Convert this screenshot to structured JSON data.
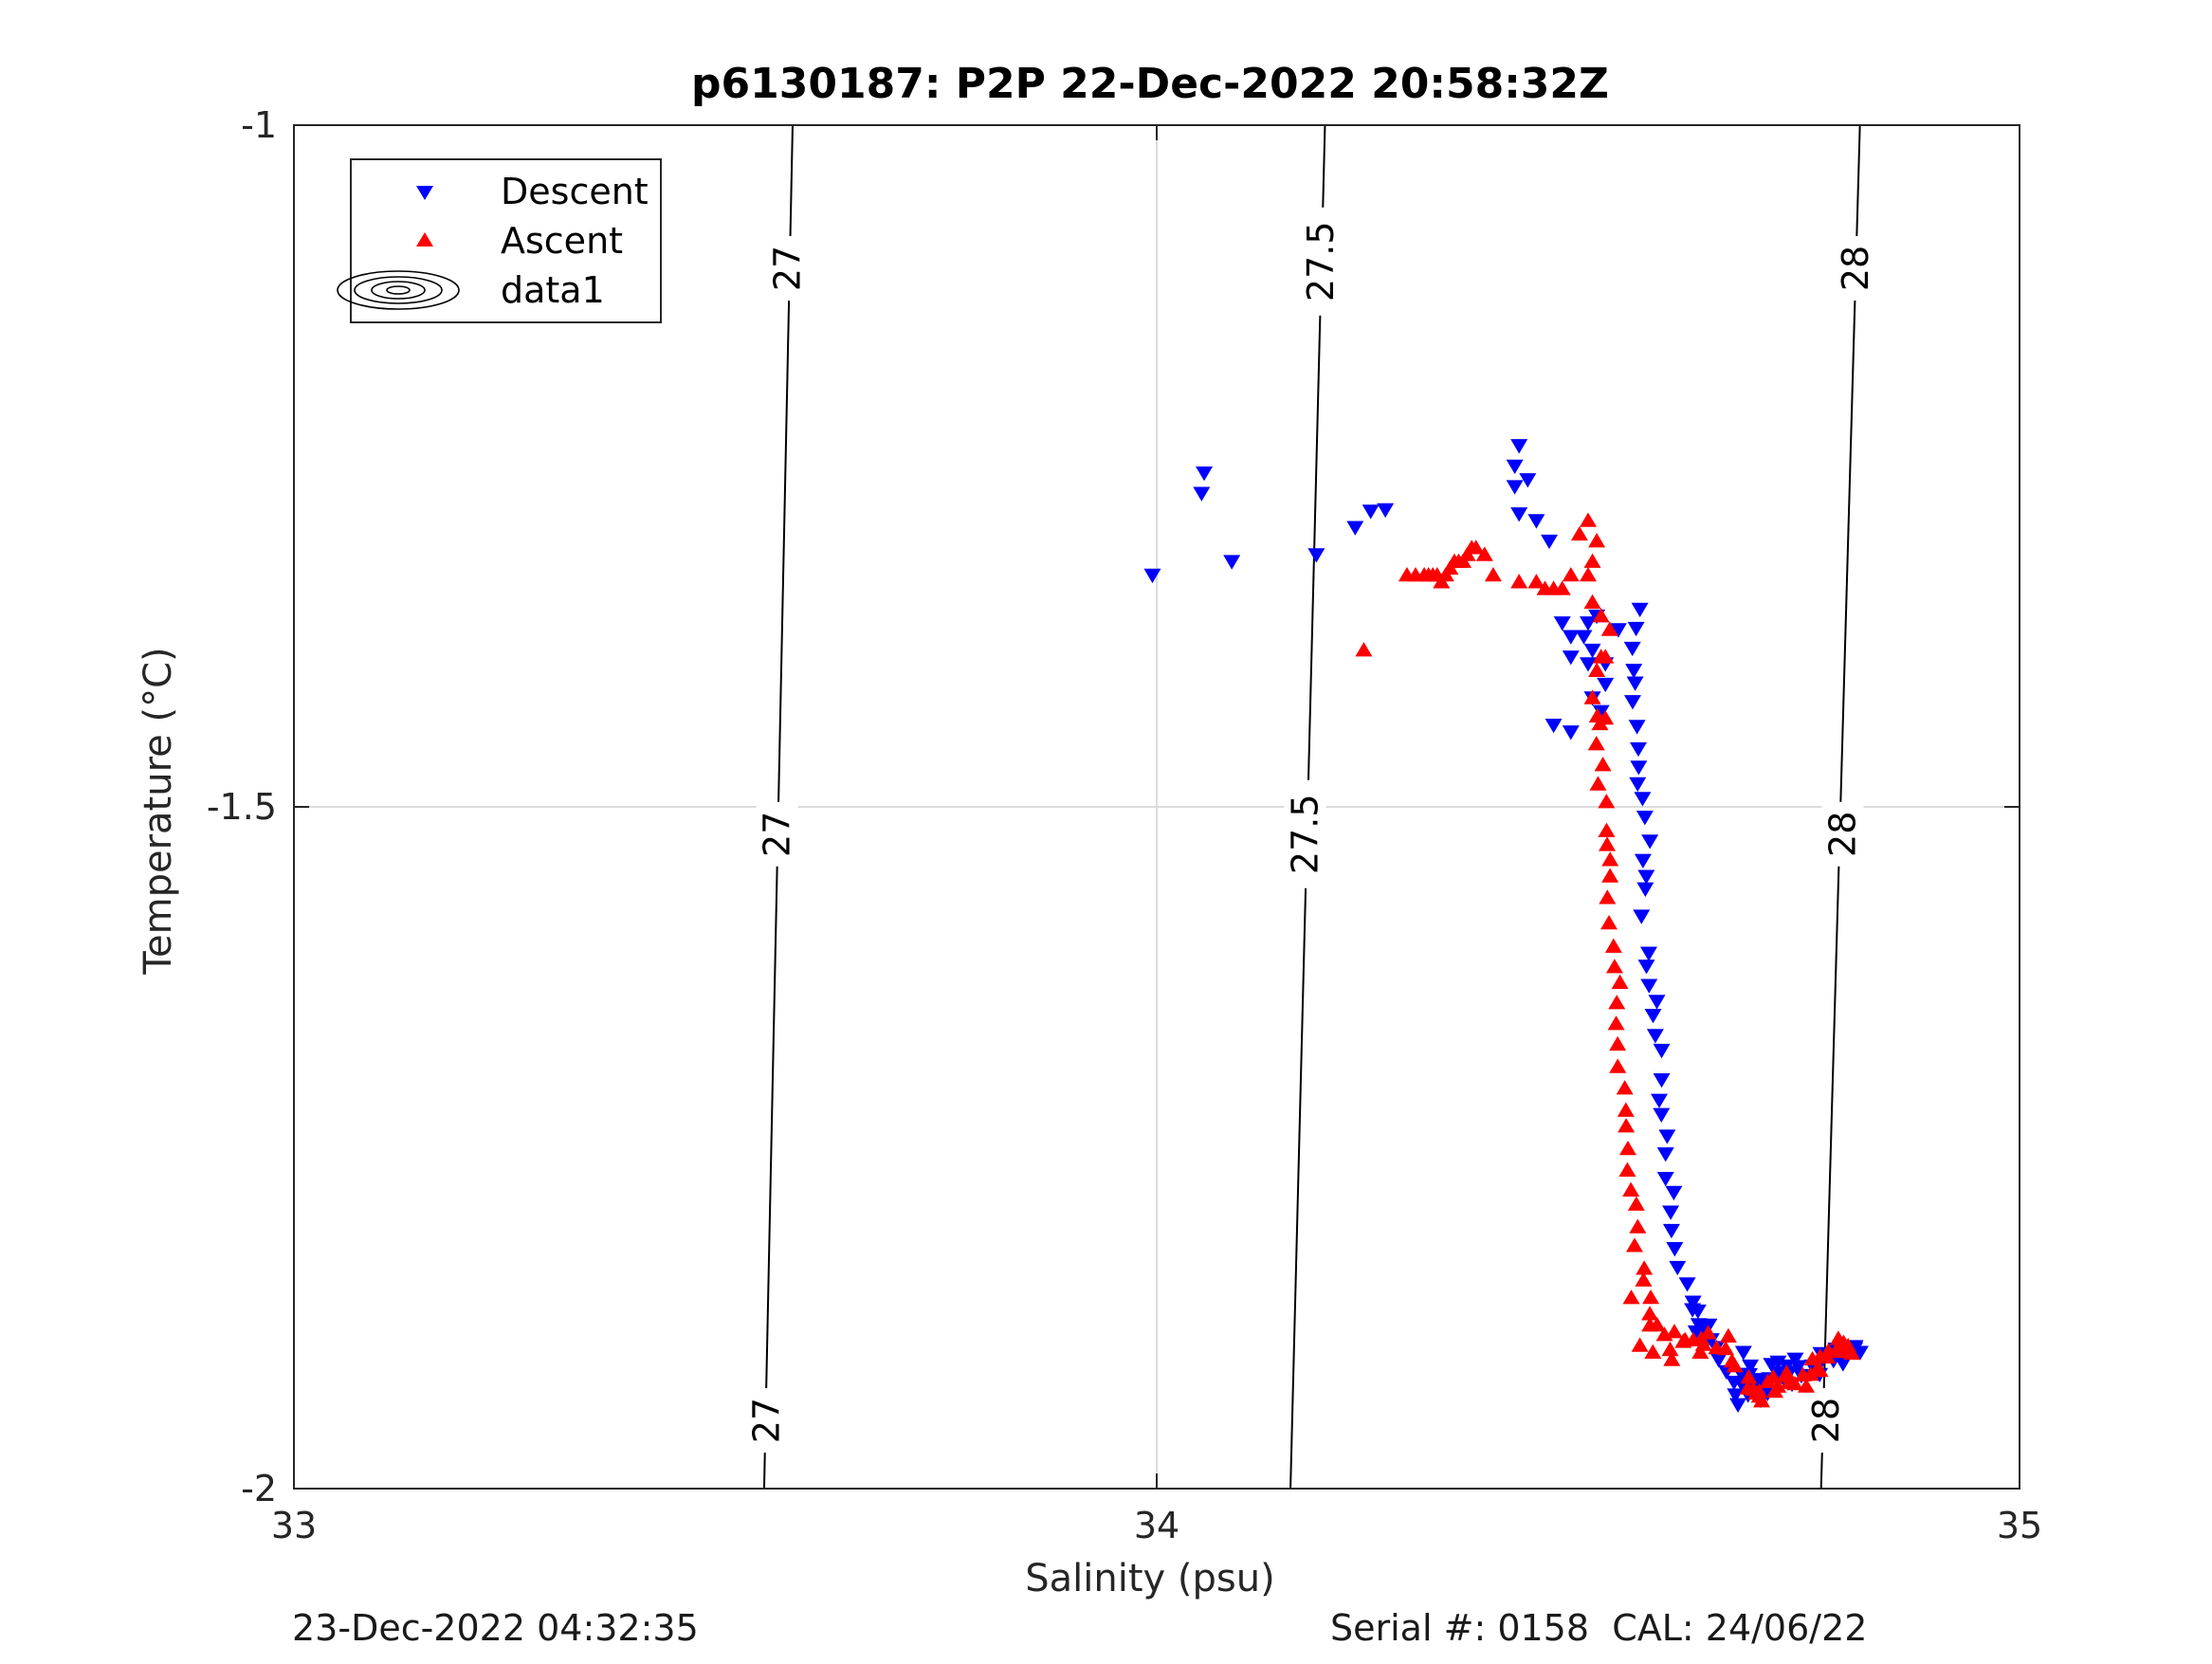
{
  "chart_data": {
    "type": "scatter",
    "title": "p6130187: P2P 22-Dec-2022 20:58:32Z",
    "xlabel": "Salinity (psu)",
    "ylabel": "Temperature (°C)",
    "xlim": [
      33,
      35
    ],
    "ylim": [
      -2,
      -1
    ],
    "xticks": [
      "33",
      "34",
      "35"
    ],
    "yticks": [
      "-1",
      "-1.5",
      "-2"
    ],
    "grid": true,
    "legend_position": "top-left",
    "legend": [
      "Descent",
      "Ascent",
      "data1"
    ],
    "colors": {
      "descent": "#0000ff",
      "ascent": "#ff0000",
      "contour": "#000000"
    },
    "isopycnals": [
      {
        "label": "27",
        "top_salinity": 33.578,
        "bottom_salinity": 33.545
      },
      {
        "label": "27.5",
        "top_salinity": 34.195,
        "bottom_salinity": 34.155
      },
      {
        "label": "28",
        "top_salinity": 34.815,
        "bottom_salinity": 34.77
      }
    ],
    "contour_labels": [
      {
        "text": "27",
        "salinity": 33.572,
        "temperature": -1.105
      },
      {
        "text": "27",
        "salinity": 33.56,
        "temperature": -1.52
      },
      {
        "text": "27",
        "salinity": 33.548,
        "temperature": -1.95
      },
      {
        "text": "27.5",
        "salinity": 34.19,
        "temperature": -1.1
      },
      {
        "text": "27.5",
        "salinity": 34.172,
        "temperature": -1.52
      },
      {
        "text": "28",
        "salinity": 34.81,
        "temperature": -1.105
      },
      {
        "text": "28",
        "salinity": 34.795,
        "temperature": -1.52
      },
      {
        "text": "28",
        "salinity": 34.776,
        "temperature": -1.95
      }
    ],
    "series": [
      {
        "name": "Descent",
        "marker": "triangle-down",
        "points": [
          [
            33.995,
            -1.33
          ],
          [
            34.055,
            -1.255
          ],
          [
            34.052,
            -1.27
          ],
          [
            34.087,
            -1.32
          ],
          [
            34.185,
            -1.315
          ],
          [
            34.23,
            -1.295
          ],
          [
            34.248,
            -1.283
          ],
          [
            34.265,
            -1.282
          ],
          [
            34.415,
            -1.265
          ],
          [
            34.415,
            -1.25
          ],
          [
            34.42,
            -1.235
          ],
          [
            34.43,
            -1.26
          ],
          [
            34.42,
            -1.285
          ],
          [
            34.44,
            -1.29
          ],
          [
            34.455,
            -1.305
          ],
          [
            34.48,
            -1.375
          ],
          [
            34.495,
            -1.375
          ],
          [
            34.46,
            -1.44
          ],
          [
            34.48,
            -1.445
          ],
          [
            34.505,
            -1.42
          ],
          [
            34.52,
            -1.395
          ],
          [
            34.52,
            -1.41
          ],
          [
            34.505,
            -1.385
          ],
          [
            34.51,
            -1.36
          ],
          [
            34.5,
            -1.365
          ],
          [
            34.515,
            -1.43
          ],
          [
            34.535,
            -1.37
          ],
          [
            34.5,
            -1.395
          ],
          [
            34.48,
            -1.39
          ],
          [
            34.47,
            -1.365
          ],
          [
            34.56,
            -1.355
          ],
          [
            34.5556,
            -1.369
          ],
          [
            34.5513,
            -1.3836
          ],
          [
            34.5529,
            -1.3998
          ],
          [
            34.5545,
            -1.4091
          ],
          [
            34.5516,
            -1.4227
          ],
          [
            34.5567,
            -1.4409
          ],
          [
            34.5582,
            -1.4573
          ],
          [
            34.5586,
            -1.4708
          ],
          [
            34.5574,
            -1.483
          ],
          [
            34.5631,
            -1.4937
          ],
          [
            34.5658,
            -1.5075
          ],
          [
            34.5716,
            -1.525
          ],
          [
            34.5636,
            -1.5392
          ],
          [
            34.5674,
            -1.5509
          ],
          [
            34.5663,
            -1.5601
          ],
          [
            34.5618,
            -1.5801
          ],
          [
            34.5703,
            -1.6073
          ],
          [
            34.5676,
            -1.6167
          ],
          [
            34.5706,
            -1.6309
          ],
          [
            34.5797,
            -1.6426
          ],
          [
            34.5753,
            -1.6528
          ],
          [
            34.5779,
            -1.6676
          ],
          [
            34.5852,
            -1.6785
          ],
          [
            34.5852,
            -1.7001
          ],
          [
            34.5824,
            -1.7151
          ],
          [
            34.5849,
            -1.7256
          ],
          [
            34.5916,
            -1.7414
          ],
          [
            34.5898,
            -1.7544
          ],
          [
            34.5898,
            -1.7724
          ],
          [
            34.5993,
            -1.7827
          ],
          [
            34.5957,
            -1.7971
          ],
          [
            34.5966,
            -1.8106
          ],
          [
            34.6004,
            -1.8239
          ],
          [
            34.6036,
            -1.8377
          ],
          [
            34.6149,
            -1.8498
          ],
          [
            34.6216,
            -1.8632
          ],
          [
            34.621,
            -1.8687
          ],
          [
            34.6273,
            -1.8697
          ],
          [
            34.6283,
            -1.8797
          ],
          [
            34.6353,
            -1.8834
          ],
          [
            34.6427,
            -1.8907
          ],
          [
            34.6484,
            -1.8965
          ],
          [
            34.6513,
            -1.9054
          ],
          [
            34.6603,
            -1.9142
          ],
          [
            34.6691,
            -1.9219
          ],
          [
            34.6707,
            -1.9312
          ],
          [
            34.6737,
            -1.9384
          ],
          [
            34.6854,
            -1.9312
          ],
          [
            34.6778,
            -1.9161
          ],
          [
            34.6799,
            -1.9252
          ],
          [
            34.6868,
            -1.9163
          ],
          [
            34.6937,
            -1.9246
          ],
          [
            34.71,
            -1.9193
          ],
          [
            34.7125,
            -1.9089
          ],
          [
            34.7202,
            -1.9072
          ],
          [
            34.7274,
            -1.9203
          ],
          [
            34.7335,
            -1.9145
          ],
          [
            34.7363,
            -1.9233
          ],
          [
            34.7435,
            -1.9105
          ],
          [
            34.7472,
            -1.917
          ],
          [
            34.7658,
            -1.9114
          ],
          [
            34.7683,
            -1.9162
          ],
          [
            34.7698,
            -1.9009
          ],
          [
            34.7844,
            -1.906
          ],
          [
            34.7873,
            -1.8976
          ],
          [
            34.7954,
            -1.9083
          ],
          [
            34.8094,
            -1.8958
          ],
          [
            34.8031,
            -1.897
          ],
          [
            34.8089,
            -1.8974
          ],
          [
            34.8153,
            -1.9
          ],
          [
            34.68,
            -1.9
          ],
          [
            34.688,
            -1.91
          ],
          [
            34.7,
            -1.92
          ],
          [
            34.708,
            -1.93
          ],
          [
            34.72,
            -1.915
          ],
          [
            34.73,
            -1.91
          ],
          [
            34.76,
            -1.91
          ],
          [
            34.74,
            -1.905
          ],
          [
            34.625,
            -1.885
          ],
          [
            34.64,
            -1.88
          ],
          [
            34.7,
            -1.935
          ],
          [
            34.69,
            -1.92
          ]
        ]
      },
      {
        "name": "Ascent",
        "marker": "triangle-up",
        "points": [
          [
            34.24,
            -1.385
          ],
          [
            34.29,
            -1.33
          ],
          [
            34.3,
            -1.33
          ],
          [
            34.31,
            -1.33
          ],
          [
            34.315,
            -1.33
          ],
          [
            34.32,
            -1.33
          ],
          [
            34.325,
            -1.33
          ],
          [
            34.33,
            -1.335
          ],
          [
            34.335,
            -1.33
          ],
          [
            34.34,
            -1.325
          ],
          [
            34.345,
            -1.32
          ],
          [
            34.35,
            -1.32
          ],
          [
            34.355,
            -1.32
          ],
          [
            34.36,
            -1.315
          ],
          [
            34.365,
            -1.31
          ],
          [
            34.37,
            -1.31
          ],
          [
            34.38,
            -1.315
          ],
          [
            34.39,
            -1.33
          ],
          [
            34.42,
            -1.335
          ],
          [
            34.44,
            -1.335
          ],
          [
            34.45,
            -1.34
          ],
          [
            34.46,
            -1.34
          ],
          [
            34.47,
            -1.34
          ],
          [
            34.48,
            -1.33
          ],
          [
            34.49,
            -1.3
          ],
          [
            34.5,
            -1.29
          ],
          [
            34.51,
            -1.305
          ],
          [
            34.505,
            -1.32
          ],
          [
            34.5,
            -1.33
          ],
          [
            34.505,
            -1.35
          ],
          [
            34.515,
            -1.36
          ],
          [
            34.525,
            -1.37
          ],
          [
            34.52,
            -1.39
          ],
          [
            34.515,
            -1.39
          ],
          [
            34.51,
            -1.4
          ],
          [
            34.52,
            -1.435
          ],
          [
            34.505,
            -1.42
          ],
          [
            34.5107,
            -1.4334
          ],
          [
            34.5137,
            -1.4391
          ],
          [
            34.5096,
            -1.4538
          ],
          [
            34.5171,
            -1.4691
          ],
          [
            34.5115,
            -1.4833
          ],
          [
            34.5212,
            -1.4963
          ],
          [
            34.5214,
            -1.5175
          ],
          [
            34.522,
            -1.5277
          ],
          [
            34.5255,
            -1.5388
          ],
          [
            34.5254,
            -1.5508
          ],
          [
            34.5223,
            -1.5666
          ],
          [
            34.5242,
            -1.5852
          ],
          [
            34.5295,
            -1.6023
          ],
          [
            34.5307,
            -1.6173
          ],
          [
            34.5369,
            -1.6288
          ],
          [
            34.5332,
            -1.6437
          ],
          [
            34.5325,
            -1.659
          ],
          [
            34.5342,
            -1.6741
          ],
          [
            34.5343,
            -1.6905
          ],
          [
            34.5425,
            -1.7063
          ],
          [
            34.5437,
            -1.7226
          ],
          [
            34.5441,
            -1.7341
          ],
          [
            34.5461,
            -1.7507
          ],
          [
            34.5455,
            -1.7665
          ],
          [
            34.5496,
            -1.7811
          ],
          [
            34.5559,
            -1.7915
          ],
          [
            34.5575,
            -1.8081
          ],
          [
            34.5538,
            -1.8218
          ],
          [
            34.565,
            -1.8385
          ],
          [
            34.5642,
            -1.8471
          ],
          [
            34.5726,
            -1.8599
          ],
          [
            34.5715,
            -1.8719
          ],
          [
            34.5716,
            -1.8801
          ],
          [
            34.5885,
            -1.8871
          ],
          [
            34.5951,
            -1.8981
          ],
          [
            34.597,
            -1.9054
          ],
          [
            34.6124,
            -1.8909
          ],
          [
            34.6103,
            -1.8921
          ],
          [
            34.6218,
            -1.891
          ],
          [
            34.6313,
            -1.8901
          ],
          [
            34.6338,
            -1.8943
          ],
          [
            34.6391,
            -1.8858
          ],
          [
            34.6489,
            -1.8967
          ],
          [
            34.6594,
            -1.8974
          ],
          [
            34.6625,
            -1.8882
          ],
          [
            34.6667,
            -1.9065
          ],
          [
            34.6861,
            -1.9183
          ],
          [
            34.6851,
            -1.9263
          ],
          [
            34.6915,
            -1.9272
          ],
          [
            34.7011,
            -1.9358
          ],
          [
            34.6984,
            -1.9323
          ],
          [
            34.6983,
            -1.9287
          ],
          [
            34.7083,
            -1.9216
          ],
          [
            34.7146,
            -1.9184
          ],
          [
            34.7165,
            -1.9287
          ],
          [
            34.7289,
            -1.9174
          ],
          [
            34.7326,
            -1.9222
          ],
          [
            34.7396,
            -1.9232
          ],
          [
            34.7489,
            -1.9167
          ],
          [
            34.7578,
            -1.9163
          ],
          [
            34.7528,
            -1.9249
          ],
          [
            34.7646,
            -1.9134
          ],
          [
            34.7688,
            -1.9134
          ],
          [
            34.7688,
            -1.9031
          ],
          [
            34.7784,
            -1.8992
          ],
          [
            34.7773,
            -1.9036
          ],
          [
            34.7878,
            -1.8983
          ],
          [
            34.7947,
            -1.8995
          ],
          [
            34.7962,
            -1.893
          ],
          [
            34.8013,
            -1.8953
          ],
          [
            34.8056,
            -1.9008
          ],
          [
            34.58,
            -1.88
          ],
          [
            34.6,
            -1.885
          ],
          [
            34.63,
            -1.9
          ],
          [
            34.67,
            -1.91
          ],
          [
            34.72,
            -1.925
          ],
          [
            34.56,
            -1.895
          ],
          [
            34.575,
            -1.9
          ],
          [
            34.55,
            -1.86
          ],
          [
            34.695,
            -1.93
          ],
          [
            34.73,
            -1.915
          ],
          [
            34.76,
            -1.905
          ],
          [
            34.79,
            -1.89
          ]
        ]
      }
    ]
  },
  "footer": {
    "timestamp": "23-Dec-2022 04:32:35",
    "serial_cal": "Serial #: 0158  CAL: 24/06/22"
  }
}
